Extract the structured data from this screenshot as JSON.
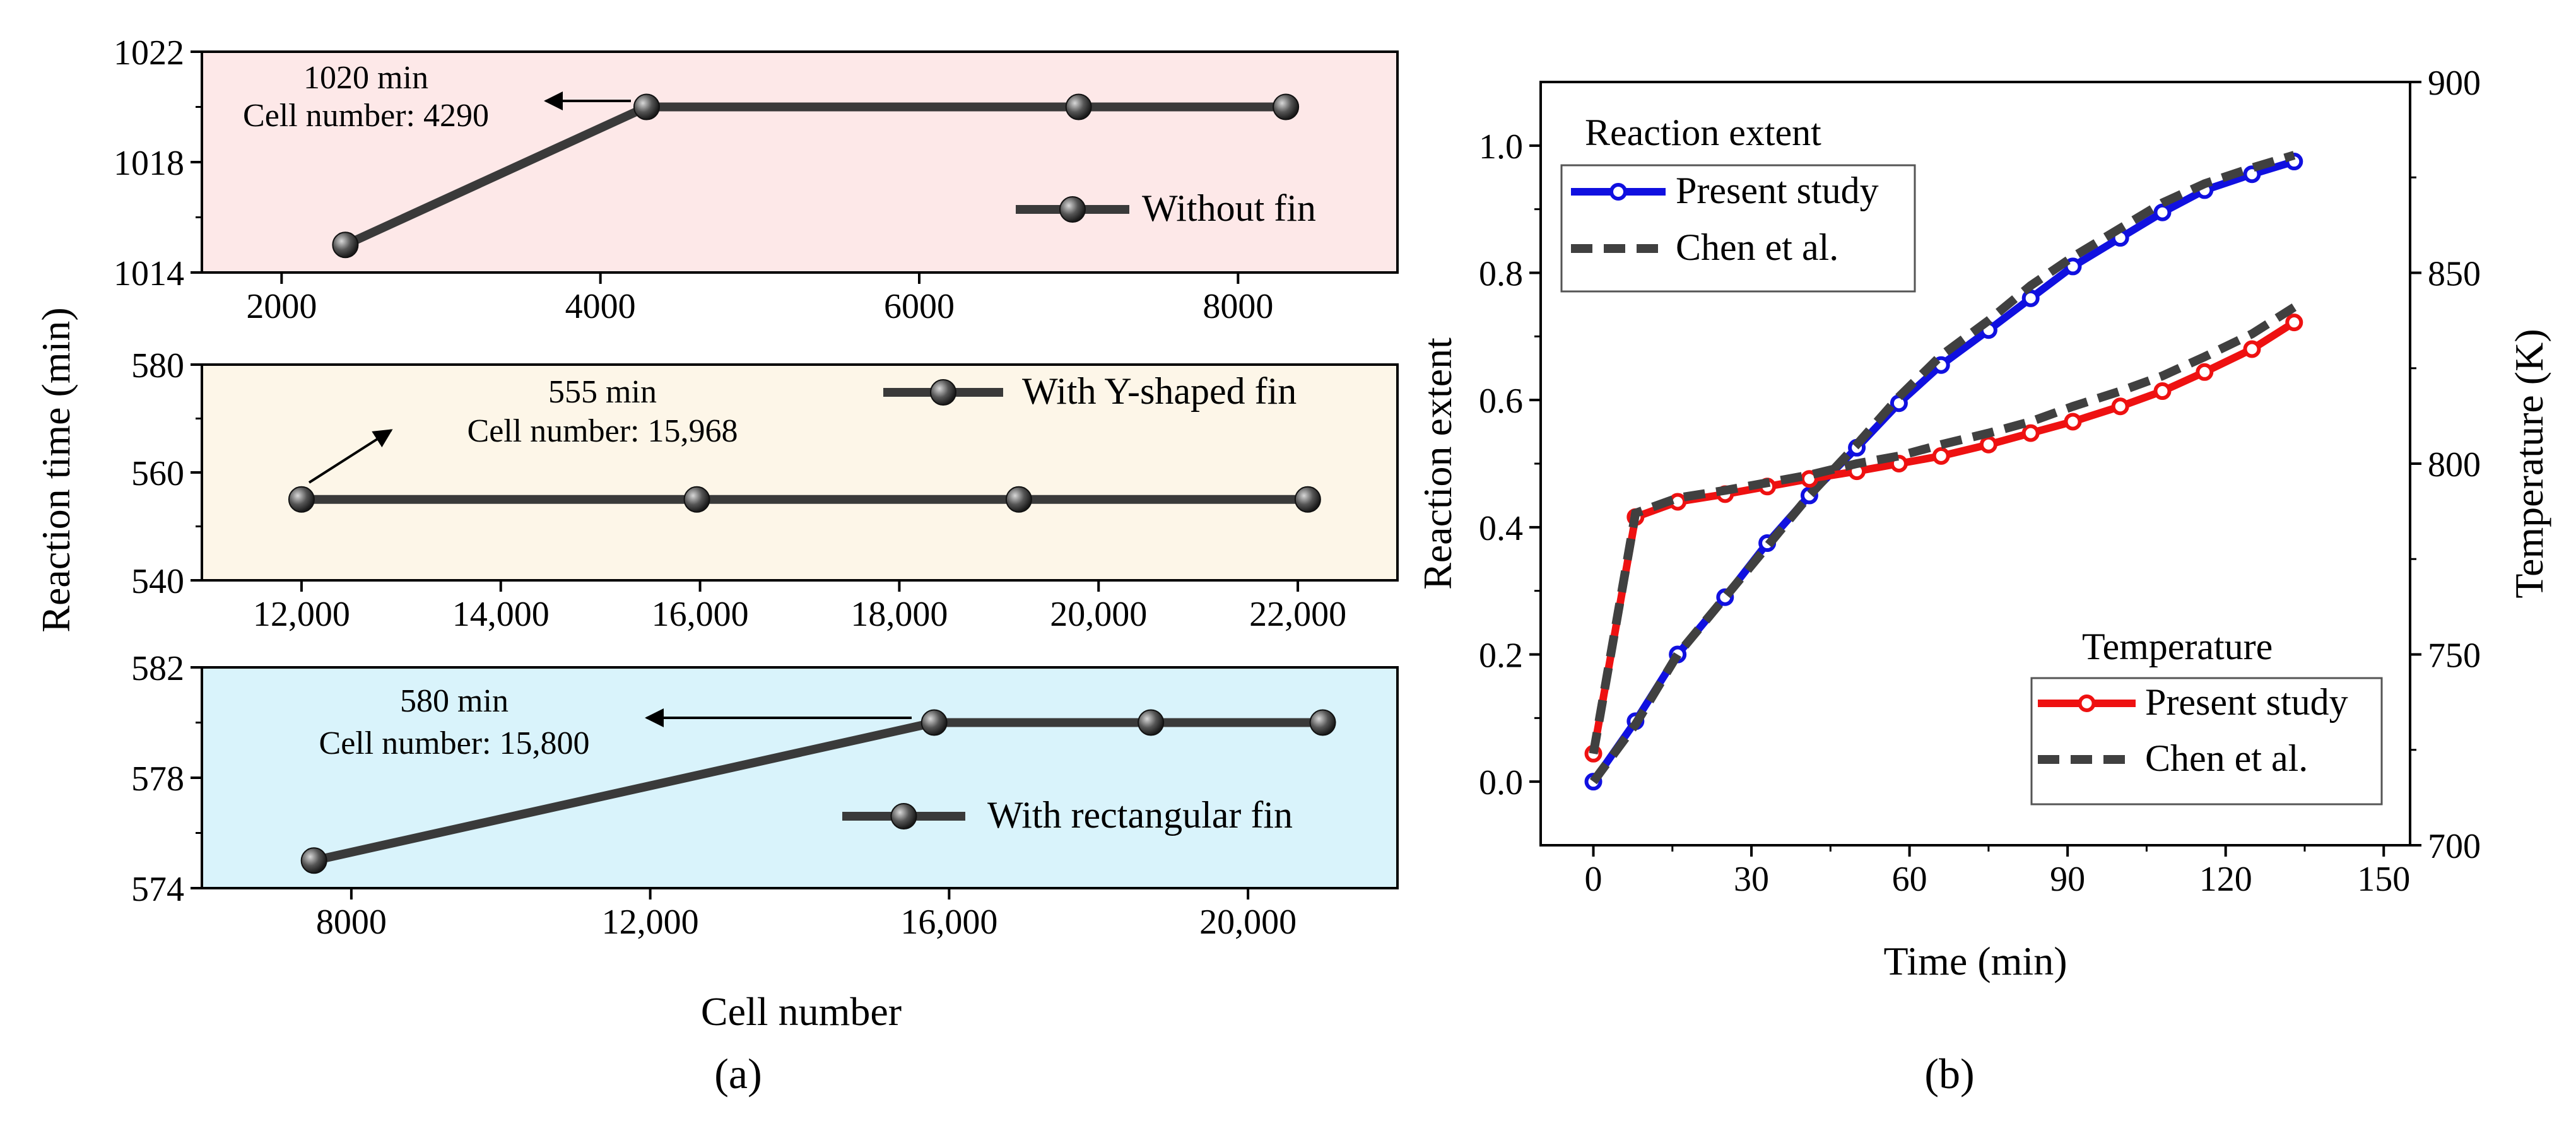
{
  "chart_data": [
    {
      "type": "line",
      "panel": "a",
      "title": "Without fin",
      "xlabel": "Cell number",
      "ylabel": "Reaction time (min)",
      "xlim": [
        1500,
        9000
      ],
      "ylim": [
        1014,
        1022
      ],
      "xticks": [
        2000,
        4000,
        6000,
        8000
      ],
      "xtick_labels": [
        "2000",
        "4000",
        "6000",
        "8000"
      ],
      "yticks": [
        1014,
        1018,
        1022
      ],
      "ytick_labels": [
        "1014",
        "1018",
        "1022"
      ],
      "x": [
        2400,
        4290,
        7000,
        8300
      ],
      "y": [
        1015,
        1020,
        1020,
        1020
      ],
      "legend": "Without fin",
      "annotation_lines": [
        "1020 min",
        "Cell number: 4290"
      ],
      "background": "#fde8e8"
    },
    {
      "type": "line",
      "panel": "a",
      "title": "With Y-shaped fin",
      "xlim": [
        11000,
        23000
      ],
      "ylim": [
        540,
        580
      ],
      "xticks": [
        12000,
        14000,
        16000,
        18000,
        20000,
        22000
      ],
      "xtick_labels": [
        "12,000",
        "14,000",
        "16,000",
        "18,000",
        "20,000",
        "22,000"
      ],
      "yticks": [
        540,
        560,
        580
      ],
      "ytick_labels": [
        "540",
        "560",
        "580"
      ],
      "x": [
        12000,
        15968,
        19200,
        22100
      ],
      "y": [
        555,
        555,
        555,
        555
      ],
      "legend": "With Y-shaped fin",
      "annotation_lines": [
        "555 min",
        "Cell number: 15,968"
      ],
      "background": "#fdf6e8"
    },
    {
      "type": "line",
      "panel": "a",
      "title": "With rectangular fin",
      "xlabel": "Cell number",
      "xlim": [
        6000,
        22000
      ],
      "ylim": [
        574,
        582
      ],
      "xticks": [
        8000,
        12000,
        16000,
        20000
      ],
      "xtick_labels": [
        "8000",
        "12,000",
        "16,000",
        "20,000"
      ],
      "yticks": [
        574,
        578,
        582
      ],
      "ytick_labels": [
        "574",
        "578",
        "582"
      ],
      "x": [
        7500,
        15800,
        18700,
        21000
      ],
      "y": [
        575,
        580,
        580,
        580
      ],
      "legend": "With rectangular fin",
      "annotation_lines": [
        "580 min",
        "Cell number: 15,800"
      ],
      "background": "#d9f3fb"
    },
    {
      "type": "line",
      "panel": "b",
      "xlabel": "Time (min)",
      "ylabel": "Reaction extent",
      "ylabel_right": "Temperature (K)",
      "xlim": [
        -10,
        155
      ],
      "ylim": [
        -0.1,
        1.1
      ],
      "ylim_right": [
        700,
        900
      ],
      "xticks": [
        0,
        30,
        60,
        90,
        120,
        150
      ],
      "xtick_labels": [
        "0",
        "30",
        "60",
        "90",
        "120",
        "150"
      ],
      "yticks": [
        0.0,
        0.2,
        0.4,
        0.6,
        0.8,
        1.0
      ],
      "ytick_labels": [
        "0.0",
        "0.2",
        "0.4",
        "0.6",
        "0.8",
        "1.0"
      ],
      "yticks_right": [
        700,
        750,
        800,
        850,
        900
      ],
      "ytick_labels_right": [
        "700",
        "750",
        "800",
        "850",
        "900"
      ],
      "legend_groups": [
        {
          "title": "Reaction extent",
          "entries": [
            "Present study",
            "Chen et al."
          ]
        },
        {
          "title": "Temperature",
          "entries": [
            "Present study",
            "Chen et al."
          ]
        }
      ],
      "series": [
        {
          "name": "Reaction extent – Present study",
          "axis": "left",
          "color": "#1010e0",
          "style": "solid-markers",
          "x": [
            0,
            8,
            16,
            25,
            33,
            41,
            50,
            58,
            66,
            75,
            83,
            91,
            100,
            108,
            116,
            125,
            133
          ],
          "values": [
            0.0,
            0.095,
            0.2,
            0.29,
            0.375,
            0.45,
            0.525,
            0.595,
            0.655,
            0.71,
            0.76,
            0.81,
            0.855,
            0.895,
            0.93,
            0.955,
            0.975
          ]
        },
        {
          "name": "Reaction extent – Chen et al.",
          "axis": "left",
          "color": "#404040",
          "style": "dashed",
          "x": [
            0,
            8,
            16,
            25,
            33,
            41,
            50,
            58,
            66,
            75,
            83,
            91,
            100,
            108,
            116,
            125,
            133
          ],
          "values": [
            0.0,
            0.09,
            0.2,
            0.29,
            0.37,
            0.45,
            0.53,
            0.605,
            0.67,
            0.725,
            0.78,
            0.825,
            0.87,
            0.91,
            0.94,
            0.965,
            0.985
          ]
        },
        {
          "name": "Temperature – Present study",
          "axis": "right",
          "color": "#ee1111",
          "style": "solid-markers",
          "x": [
            0,
            8,
            16,
            25,
            33,
            41,
            50,
            58,
            66,
            75,
            83,
            91,
            100,
            108,
            116,
            125,
            133
          ],
          "values": [
            724,
            786,
            790,
            792,
            794,
            796,
            798,
            800,
            802,
            805,
            808,
            811,
            815,
            819,
            824,
            830,
            837
          ]
        },
        {
          "name": "Temperature – Chen et al.",
          "axis": "right",
          "color": "#404040",
          "style": "dashed",
          "x": [
            0,
            8,
            16,
            25,
            33,
            41,
            50,
            58,
            66,
            75,
            83,
            91,
            100,
            108,
            116,
            125,
            133
          ],
          "values": [
            724,
            787,
            791,
            793,
            795,
            797,
            800,
            802,
            805,
            808,
            811,
            815,
            819,
            823,
            828,
            834,
            841
          ]
        }
      ]
    }
  ],
  "panel_labels": {
    "a": "(a)",
    "b": "(b)"
  }
}
